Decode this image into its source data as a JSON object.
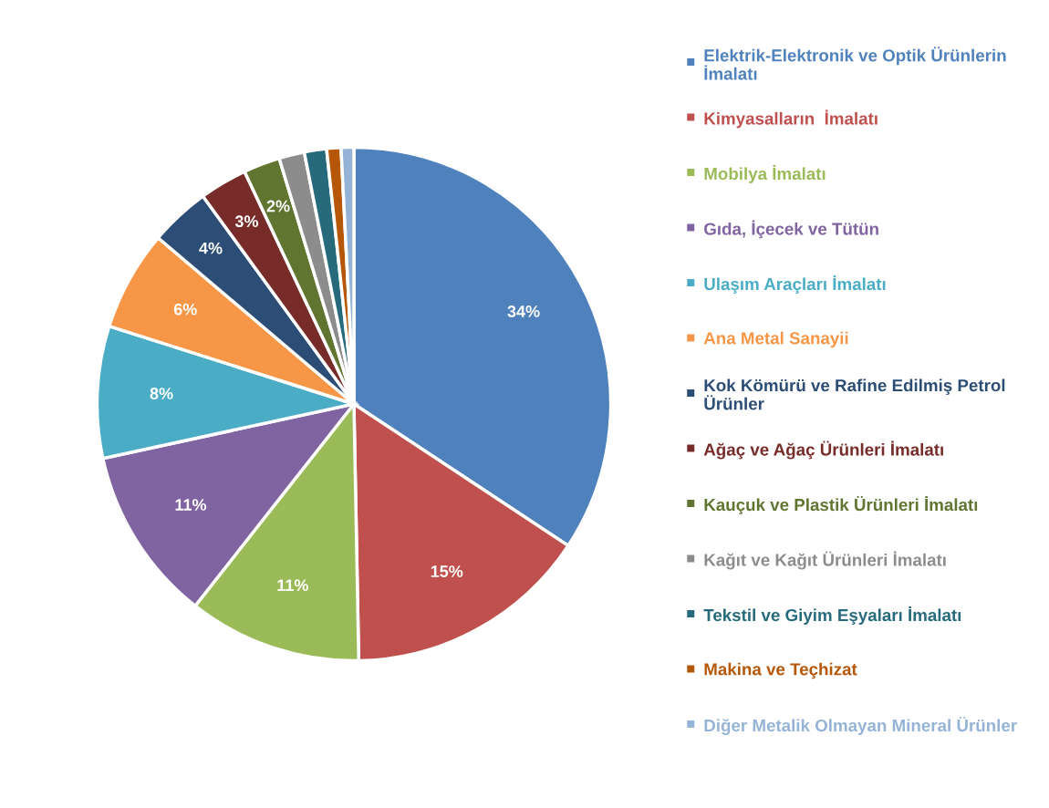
{
  "chart_data": {
    "type": "pie",
    "categories": [
      "Elektrik-Elektronik ve Optik Ürünlerin İmalatı",
      "Kimyasalların  İmalatı",
      "Mobilya İmalatı",
      "Gıda, İçecek ve Tütün",
      "Ulaşım Araçları İmalatı",
      "Ana Metal Sanayii",
      "Kok Kömürü ve Rafine Edilmiş Petrol Ürünler",
      "Ağaç ve Ağaç Ürünleri İmalatı",
      "Kauçuk ve Plastik Ürünleri İmalatı",
      "Kağıt ve Kağıt Ürünleri İmalatı",
      "Tekstil ve Giyim Eşyaları İmalatı",
      "Makina ve Teçhizat",
      "Diğer Metalik Olmayan Mineral Ürünler"
    ],
    "values": [
      34.3,
      15.4,
      10.9,
      11.0,
      8.3,
      6.3,
      3.8,
      3.0,
      2.3,
      1.6,
      1.4,
      0.9,
      0.8
    ],
    "value_labels": [
      "34%",
      "15%",
      "11%",
      "11%",
      "8%",
      "6%",
      "4%",
      "3%",
      "2%",
      null,
      null,
      null,
      null
    ],
    "colors": [
      "#4f81bd",
      "#c0504d",
      "#9bbb59",
      "#8064a2",
      "#4bacc6",
      "#f79646",
      "#2c4d75",
      "#772c2a",
      "#5f7530",
      "#8c8c8c",
      "#276a7c",
      "#b65708",
      "#95b3d7"
    ],
    "legend": "right"
  }
}
